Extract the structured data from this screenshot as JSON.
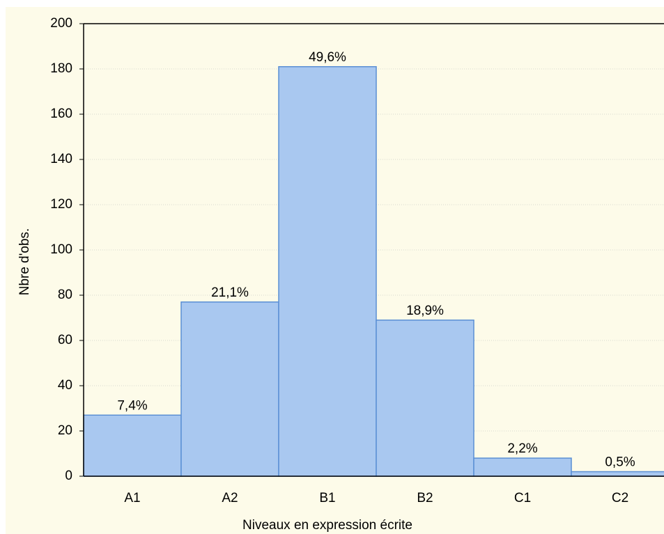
{
  "chart_data": {
    "type": "bar",
    "x_label": "Niveaux en expression écrite",
    "y_label": "Nbre d'obs.",
    "categories": [
      "A1",
      "A2",
      "B1",
      "B2",
      "C1",
      "C2"
    ],
    "values": [
      27,
      77,
      181,
      69,
      8,
      2
    ],
    "annotations": [
      "7,4%",
      "21,1%",
      "49,6%",
      "18,9%",
      "2,2%",
      "0,5%"
    ],
    "color": "#a9c8f0",
    "ylim": [
      0,
      200
    ],
    "yticks": [
      0,
      20,
      40,
      60,
      80,
      100,
      120,
      140,
      160,
      180,
      200
    ],
    "grid": true
  }
}
